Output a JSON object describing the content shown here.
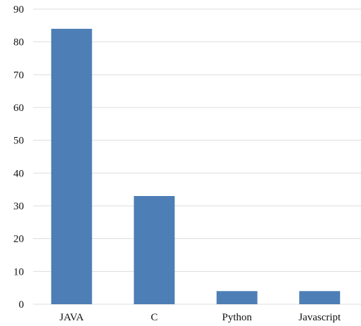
{
  "chart_data": {
    "type": "bar",
    "title": "",
    "xlabel": "",
    "ylabel": "",
    "categories": [
      "JAVA",
      "C",
      "Python",
      "Javascript"
    ],
    "values": [
      84,
      33,
      4,
      4
    ],
    "ylim": [
      0,
      90
    ],
    "yticks": [
      0,
      10,
      20,
      30,
      40,
      50,
      60,
      70,
      80,
      90
    ],
    "grid": true,
    "legend": "none",
    "bar_color": "#4d7eb5",
    "grid_color": "#dddddd"
  }
}
